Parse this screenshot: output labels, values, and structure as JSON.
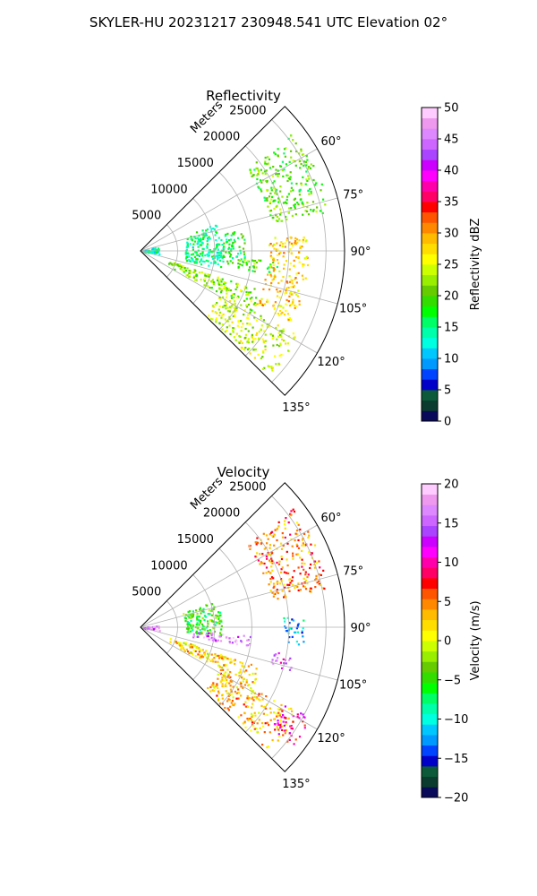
{
  "figure": {
    "title": "SKYLER-HU  20231217  230948.541 UTC Elevation 02°"
  },
  "chart_data": [
    {
      "type": "heatmap",
      "projection": "polar-sector",
      "title": "Reflectivity",
      "radial_label": "Meters",
      "radial_ticks": [
        5000,
        10000,
        15000,
        20000,
        25000
      ],
      "r_max": 27500,
      "azimuth_range_deg": [
        45,
        135
      ],
      "angular_ticks": [
        "60°",
        "75°",
        "90°",
        "105°",
        "120°",
        "135°"
      ],
      "angular_tick_values": [
        60,
        75,
        90,
        105,
        120,
        135
      ],
      "grid": true,
      "colorbar": {
        "label": "Reflectivity dBZ",
        "min": 0,
        "max": 50,
        "ticks": [
          "0",
          "5",
          "10",
          "15",
          "20",
          "25",
          "30",
          "35",
          "40",
          "45",
          "50"
        ],
        "tick_values": [
          0,
          5,
          10,
          15,
          20,
          25,
          30,
          35,
          40,
          45,
          50
        ],
        "colors": [
          "#0a0a5a",
          "#0b3b2e",
          "#0c5a3a",
          "#0000c8",
          "#0044ff",
          "#0099ff",
          "#00c8ff",
          "#00ffe0",
          "#00ffaa",
          "#00ff66",
          "#00ff00",
          "#33dd00",
          "#66cc00",
          "#99ee00",
          "#ccff00",
          "#ffff00",
          "#ffdd00",
          "#ffbb00",
          "#ff8800",
          "#ff5500",
          "#ff0000",
          "#ff0066",
          "#ff00aa",
          "#ff00ff",
          "#cc00ff",
          "#aa44ff",
          "#cc66ff",
          "#dd88ff",
          "#ee99ee",
          "#ffccff"
        ]
      },
      "echo_regions": [
        {
          "desc": "near-range cluster",
          "az": [
            75,
            100
          ],
          "r": [
            0,
            2500
          ],
          "value": 14
        },
        {
          "desc": "central cluster",
          "az": [
            70,
            102
          ],
          "r": [
            6000,
            11000
          ],
          "value": 15
        },
        {
          "desc": "central cluster fringe",
          "az": [
            78,
            98
          ],
          "r": [
            11000,
            14000
          ],
          "value": 17
        },
        {
          "desc": "east band",
          "az": [
            94,
            100
          ],
          "r": [
            13000,
            18500
          ],
          "value": 20
        },
        {
          "desc": "diagonal band",
          "az": [
            108,
            118
          ],
          "r": [
            4000,
            17000
          ],
          "value": 22
        },
        {
          "desc": "south-east mass",
          "az": [
            118,
            134
          ],
          "r": [
            12000,
            24000
          ],
          "value": 24
        },
        {
          "desc": "outer fragments",
          "az": [
            52,
            78
          ],
          "r": [
            18000,
            26000
          ],
          "value": 20
        },
        {
          "desc": "radial streak",
          "az": [
            84,
            116
          ],
          "r": [
            17000,
            22500
          ],
          "value": 28
        }
      ]
    },
    {
      "type": "heatmap",
      "projection": "polar-sector",
      "title": "Velocity",
      "radial_label": "Meters",
      "radial_ticks": [
        5000,
        10000,
        15000,
        20000,
        25000
      ],
      "r_max": 27500,
      "azimuth_range_deg": [
        45,
        135
      ],
      "angular_ticks": [
        "60°",
        "75°",
        "90°",
        "105°",
        "120°",
        "135°"
      ],
      "angular_tick_values": [
        60,
        75,
        90,
        105,
        120,
        135
      ],
      "grid": true,
      "colorbar": {
        "label": "Velocity (m/s)",
        "min": -20,
        "max": 20,
        "ticks": [
          "−20",
          "−15",
          "−10",
          "−5",
          "0",
          "5",
          "10",
          "15",
          "20"
        ],
        "tick_values": [
          -20,
          -15,
          -10,
          -5,
          0,
          5,
          10,
          15,
          20
        ],
        "colors": [
          "#0a0a5a",
          "#0b3b2e",
          "#0c5a3a",
          "#0000c8",
          "#0044ff",
          "#0099ff",
          "#00c8ff",
          "#00ffe0",
          "#00ffaa",
          "#00ff66",
          "#00ff00",
          "#33dd00",
          "#66cc00",
          "#99ee00",
          "#ccff00",
          "#ffff00",
          "#ffdd00",
          "#ffbb00",
          "#ff8800",
          "#ff5500",
          "#ff0000",
          "#ff0066",
          "#ff00aa",
          "#ff00ff",
          "#cc00ff",
          "#aa44ff",
          "#cc66ff",
          "#dd88ff",
          "#ee99ee",
          "#ffccff"
        ]
      },
      "echo_regions": [
        {
          "desc": "near-range inbound",
          "az": [
            82,
            100
          ],
          "r": [
            0,
            2500
          ],
          "value": 16
        },
        {
          "desc": "central cluster",
          "az": [
            70,
            96
          ],
          "r": [
            6000,
            11000
          ],
          "value": -5
        },
        {
          "desc": "east outbound band",
          "az": [
            94,
            100
          ],
          "r": [
            7000,
            15000
          ],
          "value": 16
        },
        {
          "desc": "diagonal band",
          "az": [
            108,
            118
          ],
          "r": [
            4000,
            17000
          ],
          "value": 2
        },
        {
          "desc": "south-east mass",
          "az": [
            118,
            134
          ],
          "r": [
            12000,
            24000
          ],
          "value": 3
        },
        {
          "desc": "far south-east edge",
          "az": [
            118,
            128
          ],
          "r": [
            22000,
            26000
          ],
          "value": 9
        },
        {
          "desc": "outer fragments",
          "az": [
            52,
            78
          ],
          "r": [
            18000,
            26000
          ],
          "value": 5
        },
        {
          "desc": "far east inbound",
          "az": [
            86,
            96
          ],
          "r": [
            19000,
            22000
          ],
          "value": -11
        },
        {
          "desc": "far east magenta",
          "az": [
            100,
            106
          ],
          "r": [
            18000,
            21000
          ],
          "value": 14
        }
      ]
    }
  ]
}
